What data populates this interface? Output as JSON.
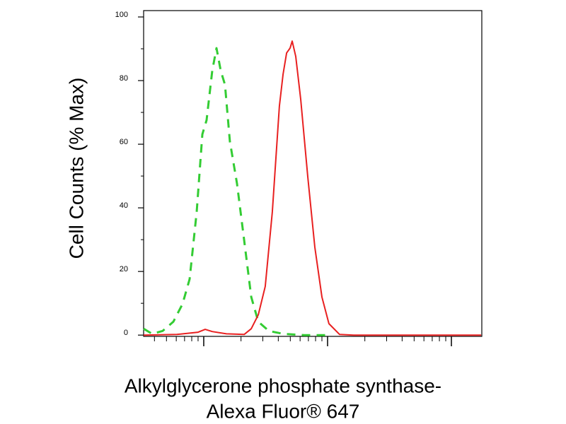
{
  "chart_data": {
    "type": "line",
    "y_label": "Cell Counts (% Max)",
    "x_label": [
      "Alkylglycerone phosphate synthase-",
      "Alexa Fluor® 647"
    ],
    "x_scale": "log",
    "xlim": [
      32.7,
      17600
    ],
    "xticks": [
      100,
      1000,
      10000
    ],
    "xminorticks": [
      40,
      50,
      60,
      70,
      80,
      90,
      200,
      300,
      400,
      500,
      600,
      700,
      800,
      900,
      2000,
      3000,
      4000,
      5000,
      6000,
      7000,
      8000,
      9000
    ],
    "ylim": [
      -0.4,
      102
    ],
    "yticks": [
      0,
      20,
      40,
      60,
      80,
      100
    ],
    "yminorticks": [
      10,
      30,
      50,
      70,
      90
    ],
    "series": [
      {
        "color": "#33cc33",
        "dashed": true,
        "x": [
          32.7,
          38.3,
          46.6,
          56.8,
          67.4,
          76.9,
          87.7,
          97.4,
          105.4,
          117.1,
          126.7,
          137.2,
          148.4,
          162.6,
          185.6,
          211.9,
          241.7,
          275.7,
          335.7,
          436.9,
          647.5,
          961
        ],
        "values": [
          2.0,
          0.4,
          1.3,
          4.2,
          9.8,
          17.6,
          38.7,
          63.1,
          67.6,
          83.1,
          90.2,
          83.1,
          78.7,
          60.9,
          47.6,
          29.8,
          12,
          4.2,
          1.3,
          0.4,
          0,
          0
        ]
      },
      {
        "color": "#e82020",
        "dashed": false,
        "x": [
          32.7,
          60.7,
          90.0,
          102.7,
          117.1,
          152.4,
          211.9,
          241.7,
          275.7,
          314,
          358,
          408,
          436.9,
          466.6,
          498,
          518,
          553,
          607,
          692,
          789,
          900,
          1026,
          1250,
          1626,
          17400
        ],
        "values": [
          0,
          0.2,
          0.9,
          1.8,
          1.1,
          0.4,
          0.2,
          2,
          6.4,
          15.3,
          38.7,
          72,
          82,
          88.7,
          90.2,
          92.4,
          87.6,
          74.2,
          49.8,
          27.6,
          12,
          3.6,
          0.2,
          0,
          0
        ]
      }
    ]
  }
}
